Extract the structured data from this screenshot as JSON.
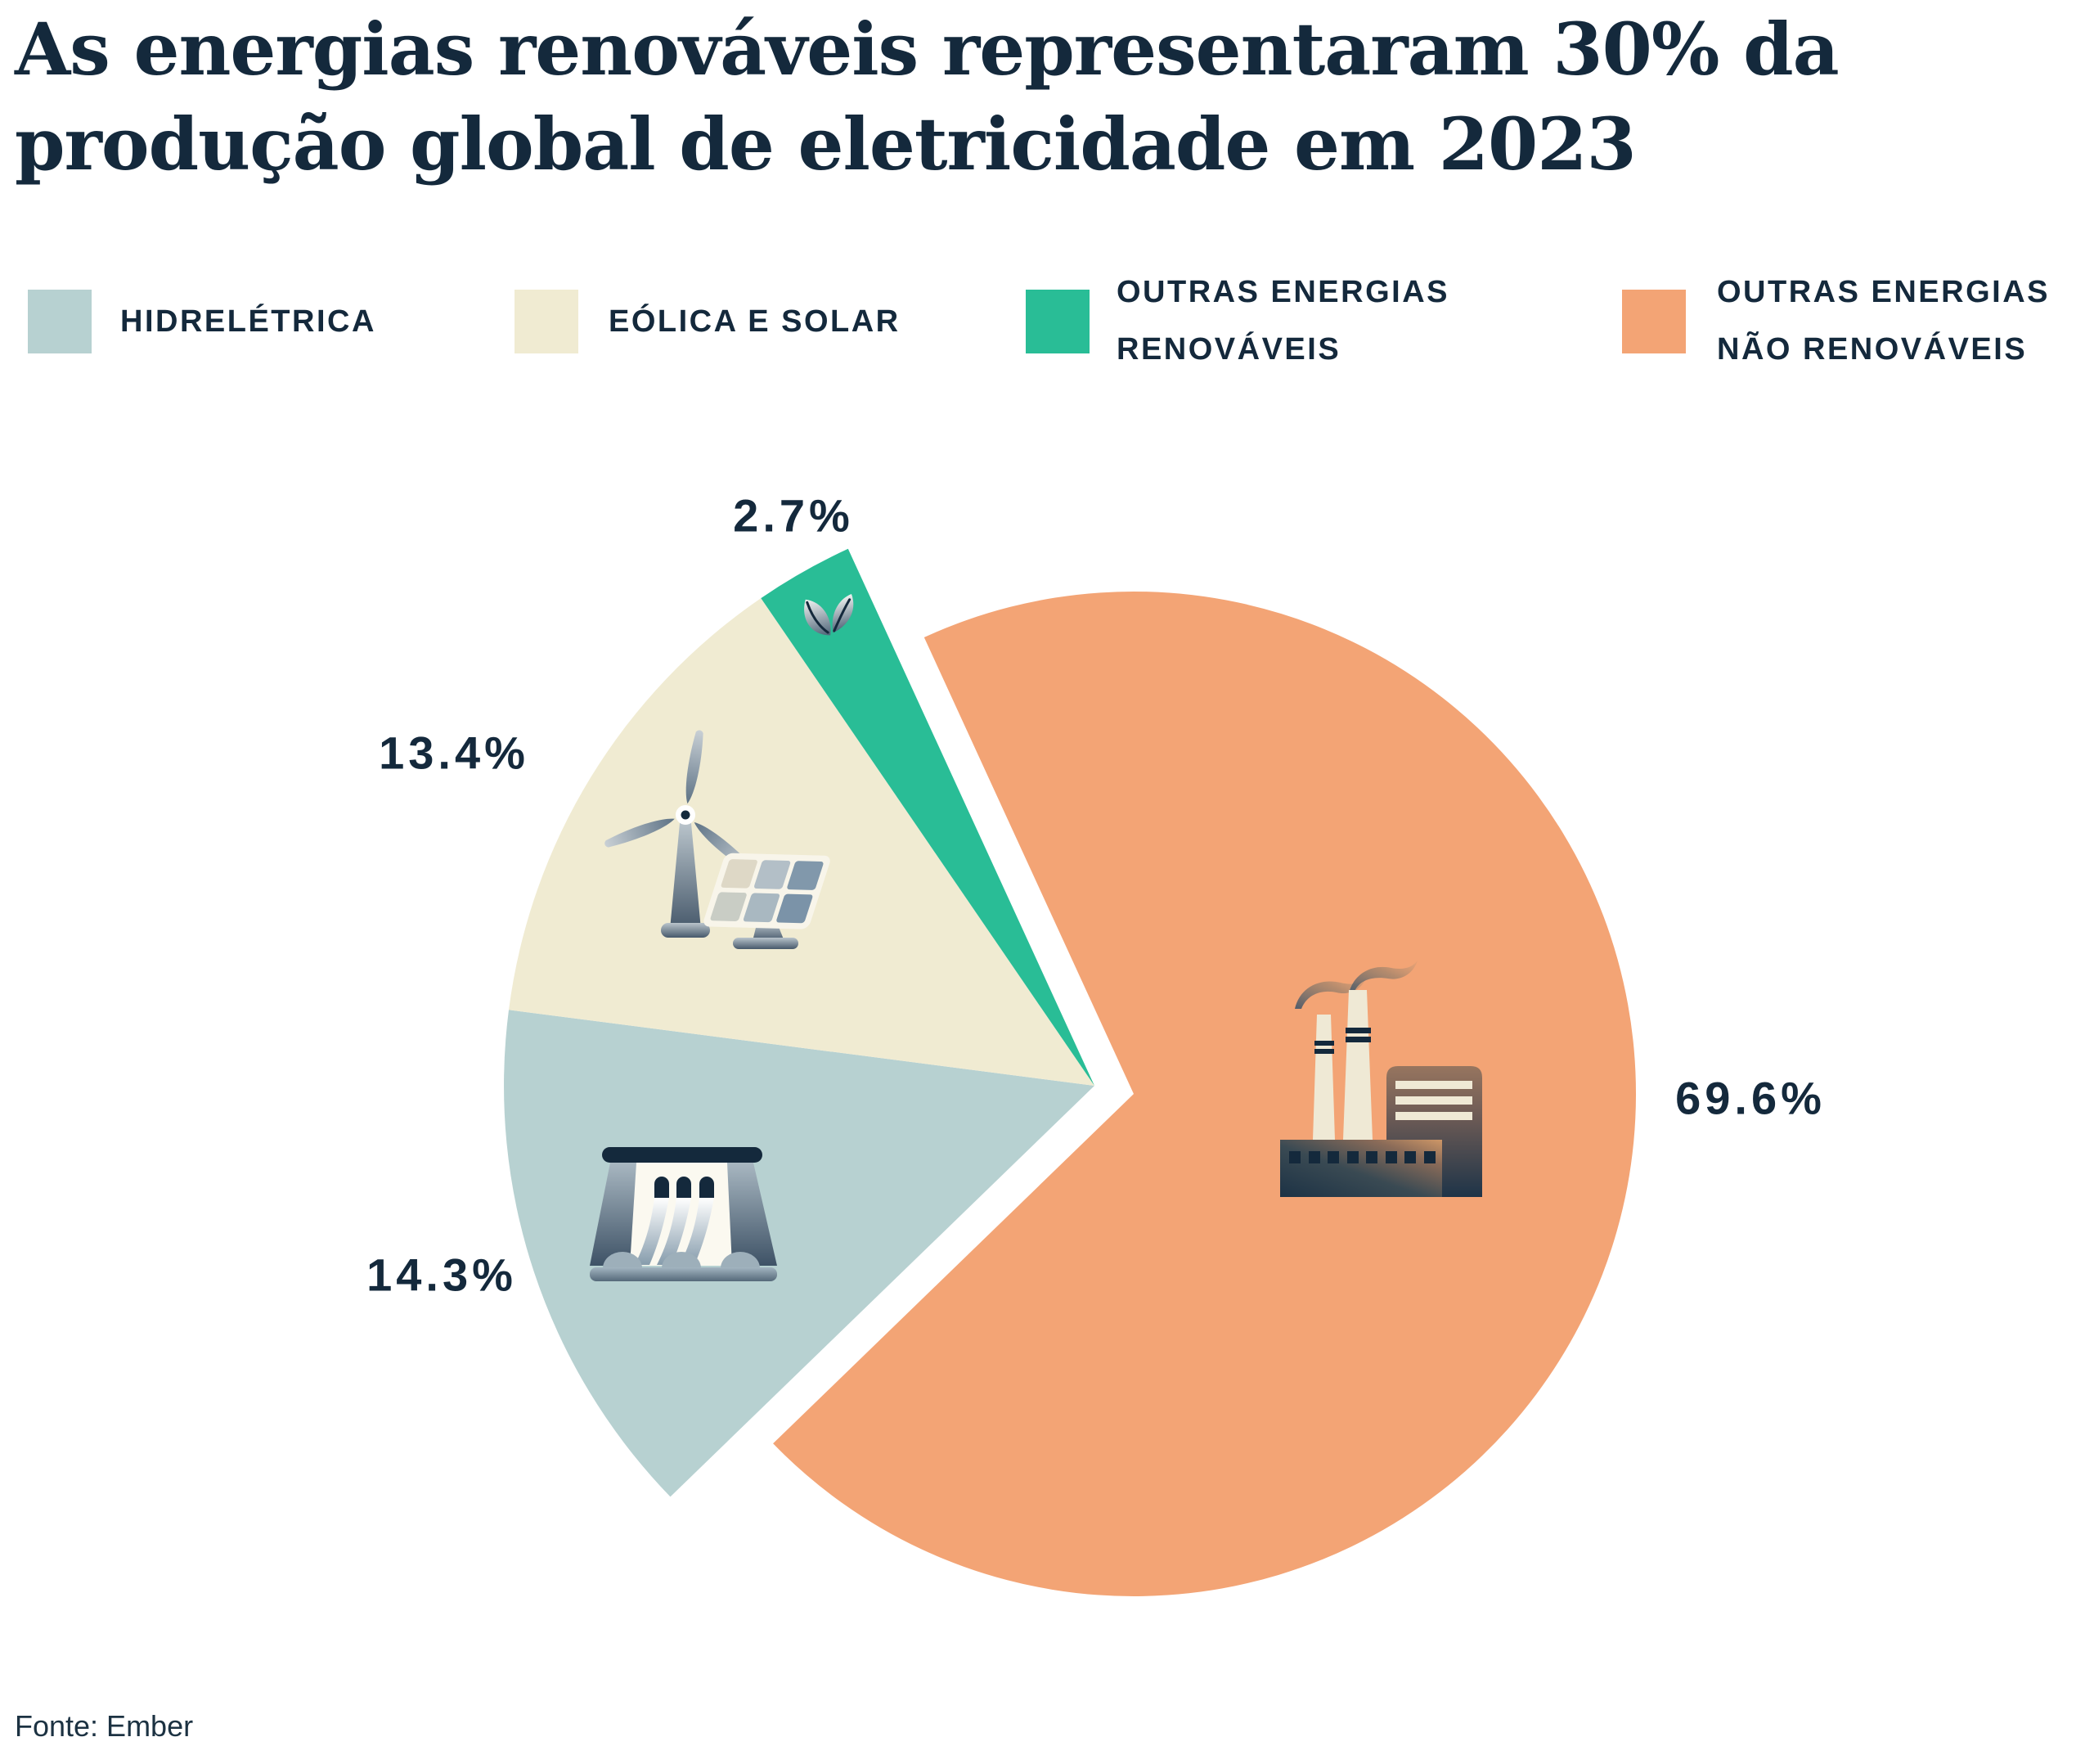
{
  "title": "As energias renováveis representaram 30% da produção global de eletricidade em 2023",
  "source": "Fonte: Ember",
  "colors": {
    "navy": "#14293C",
    "hydro": "#B7D1D1",
    "wind_solar": "#F0EBD2",
    "other_renewables": "#29BD96",
    "non_renewables": "#F3A475",
    "background": "#FFFFFF"
  },
  "legend": {
    "items": [
      {
        "line1": "HIDRELÉTRICA",
        "line2": "",
        "color": "#B7D1D1"
      },
      {
        "line1": "EÓLICA E SOLAR",
        "line2": "",
        "color": "#F0EBD2"
      },
      {
        "line1": "OUTRAS ENERGIAS",
        "line2": "RENOVÁVEIS",
        "color": "#29BD96"
      },
      {
        "line1": "OUTRAS ENERGIAS",
        "line2": "NÃO RENOVÁVEIS",
        "color": "#F3A475"
      }
    ]
  },
  "chart_data": {
    "type": "pie",
    "title": "As energias renováveis representaram 30% da produção global de eletricidade em 2023",
    "categories": [
      "Hidrelétrica",
      "Eólica e solar",
      "Outras energias renováveis",
      "Outras energias não renováveis"
    ],
    "values": [
      14.3,
      13.4,
      2.7,
      69.6
    ],
    "slices": [
      {
        "label": "Hidrelétrica",
        "value": 14.3,
        "pct_label": "14.3%",
        "color": "#B7D1D1",
        "icon": "dam-icon",
        "exploded": false
      },
      {
        "label": "Eólica e solar",
        "value": 13.4,
        "pct_label": "13.4%",
        "color": "#F0EBD2",
        "icon": "wind-turbine-solar-panel-icon",
        "exploded": false
      },
      {
        "label": "Outras energias renováveis",
        "value": 2.7,
        "pct_label": "2.7%",
        "color": "#29BD96",
        "icon": "leaf-icon",
        "exploded": false
      },
      {
        "label": "Outras energias não renováveis",
        "value": 69.6,
        "pct_label": "69.6%",
        "color": "#F3A475",
        "icon": "factory-icon",
        "exploded": true
      }
    ],
    "start_angle_deg": 135.9,
    "legend_position": "top",
    "renewables_total_pct": 30.4
  }
}
